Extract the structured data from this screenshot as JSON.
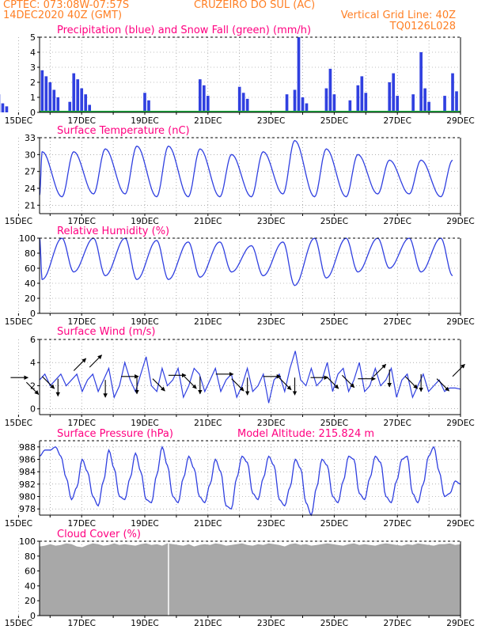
{
  "header": {
    "source": "CPTEC:  073:08W-07:57S",
    "station": "CRUZEIRO DO SUL (AC)",
    "date": "14DEC2020 40Z (GMT)",
    "grid_note": "Vertical Grid Line: 40Z",
    "code": "TQ0126L028"
  },
  "colors": {
    "header_text": "#ff7f24",
    "panel_title": "#ff0080",
    "line": "#3040e0",
    "snow": "#20b040",
    "cloud": "#a8a8a8",
    "wind_arrow": "#000000",
    "axes": "#000000",
    "grid": "#808080"
  },
  "x_axis": {
    "start": "14DEC2020 40Z",
    "end": "29DEC2020",
    "tick_labels": [
      "15DEC",
      "17DEC",
      "19DEC",
      "21DEC",
      "23DEC",
      "25DEC",
      "27DEC",
      "29DEC"
    ],
    "grid": "dotted vertical line every day"
  },
  "chart_data": [
    {
      "type": "bar",
      "title": "Precipitation (blue) and Snow Fall (green) (mm/h)",
      "ylim": [
        0,
        5
      ],
      "yticks": [
        0,
        1,
        2,
        3,
        4,
        5
      ],
      "series": [
        {
          "name": "Precipitation (blue)",
          "points": [
            [
              "14DEC 06Z",
              1.6
            ],
            [
              "14DEC 09Z",
              1.2
            ],
            [
              "14DEC 12Z",
              0.6
            ],
            [
              "14DEC 15Z",
              0.4
            ],
            [
              "15DEC 18Z",
              2.8
            ],
            [
              "15DEC 21Z",
              2.4
            ],
            [
              "16DEC 00Z",
              2.0
            ],
            [
              "16DEC 03Z",
              1.5
            ],
            [
              "16DEC 06Z",
              1.0
            ],
            [
              "16DEC 15Z",
              0.7
            ],
            [
              "16DEC 18Z",
              2.6
            ],
            [
              "16DEC 21Z",
              2.2
            ],
            [
              "17DEC 00Z",
              1.6
            ],
            [
              "17DEC 03Z",
              1.2
            ],
            [
              "17DEC 06Z",
              0.5
            ],
            [
              "19DEC 00Z",
              1.3
            ],
            [
              "19DEC 03Z",
              0.8
            ],
            [
              "20DEC 18Z",
              2.2
            ],
            [
              "20DEC 21Z",
              1.8
            ],
            [
              "21DEC 00Z",
              1.1
            ],
            [
              "22DEC 00Z",
              1.7
            ],
            [
              "22DEC 03Z",
              1.3
            ],
            [
              "22DEC 06Z",
              0.9
            ],
            [
              "23DEC 12Z",
              1.2
            ],
            [
              "23DEC 18Z",
              1.5
            ],
            [
              "23DEC 21Z",
              5.0
            ],
            [
              "24DEC 00Z",
              1.0
            ],
            [
              "24DEC 03Z",
              0.6
            ],
            [
              "24DEC 18Z",
              1.6
            ],
            [
              "24DEC 21Z",
              2.9
            ],
            [
              "25DEC 00Z",
              1.2
            ],
            [
              "25DEC 12Z",
              0.8
            ],
            [
              "25DEC 18Z",
              1.8
            ],
            [
              "25DEC 21Z",
              2.4
            ],
            [
              "26DEC 00Z",
              1.3
            ],
            [
              "26DEC 18Z",
              2.0
            ],
            [
              "26DEC 21Z",
              2.6
            ],
            [
              "27DEC 00Z",
              1.1
            ],
            [
              "27DEC 12Z",
              1.2
            ],
            [
              "27DEC 18Z",
              4.0
            ],
            [
              "27DEC 21Z",
              1.6
            ],
            [
              "28DEC 00Z",
              0.7
            ],
            [
              "28DEC 12Z",
              1.1
            ],
            [
              "28DEC 18Z",
              2.6
            ],
            [
              "28DEC 21Z",
              1.4
            ]
          ]
        },
        {
          "name": "Snow Fall (green)",
          "constant": 0
        }
      ]
    },
    {
      "type": "line",
      "title": "Surface Temperature (nC)",
      "ylim": [
        19.5,
        33
      ],
      "yticks": [
        21,
        24,
        27,
        30,
        33
      ],
      "daily_cycle": {
        "max_time": "18Z",
        "min_time": "09Z",
        "values": [
          {
            "day": "14DEC",
            "max": 23.0,
            "min": 20.5
          },
          {
            "day": "15DEC",
            "max": 30.5,
            "min": 22.0
          },
          {
            "day": "16DEC",
            "max": 30.5,
            "min": 22.5
          },
          {
            "day": "17DEC",
            "max": 31.0,
            "min": 23.0
          },
          {
            "day": "18DEC",
            "max": 31.5,
            "min": 23.0
          },
          {
            "day": "19DEC",
            "max": 31.5,
            "min": 22.5
          },
          {
            "day": "20DEC",
            "max": 31.0,
            "min": 22.5
          },
          {
            "day": "21DEC",
            "max": 30.0,
            "min": 22.5
          },
          {
            "day": "22DEC",
            "max": 30.5,
            "min": 22.5
          },
          {
            "day": "23DEC",
            "max": 32.5,
            "min": 23.0
          },
          {
            "day": "24DEC",
            "max": 31.0,
            "min": 22.5
          },
          {
            "day": "25DEC",
            "max": 30.0,
            "min": 22.5
          },
          {
            "day": "26DEC",
            "max": 29.0,
            "min": 23.0
          },
          {
            "day": "27DEC",
            "max": 29.0,
            "min": 23.0
          },
          {
            "day": "28DEC",
            "max": 29.0,
            "min": 22.5
          },
          {
            "day": "29DEC",
            "max": 28.5,
            "min": 23.0
          }
        ]
      }
    },
    {
      "type": "line",
      "title": "Relative Humidity (%)",
      "ylim": [
        0,
        100
      ],
      "yticks": [
        0,
        20,
        40,
        60,
        80,
        100
      ],
      "daily_cycle": {
        "max_time": "09Z",
        "min_time": "18Z",
        "values": [
          {
            "day": "14DEC",
            "max": 100,
            "min": 100
          },
          {
            "day": "15DEC",
            "max": 100,
            "min": 45
          },
          {
            "day": "16DEC",
            "max": 100,
            "min": 55
          },
          {
            "day": "17DEC",
            "max": 100,
            "min": 50
          },
          {
            "day": "18DEC",
            "max": 100,
            "min": 45
          },
          {
            "day": "19DEC",
            "max": 97,
            "min": 45
          },
          {
            "day": "20DEC",
            "max": 95,
            "min": 48
          },
          {
            "day": "21DEC",
            "max": 95,
            "min": 55
          },
          {
            "day": "22DEC",
            "max": 90,
            "min": 50
          },
          {
            "day": "23DEC",
            "max": 95,
            "min": 37
          },
          {
            "day": "24DEC",
            "max": 100,
            "min": 47
          },
          {
            "day": "25DEC",
            "max": 100,
            "min": 55
          },
          {
            "day": "26DEC",
            "max": 100,
            "min": 60
          },
          {
            "day": "27DEC",
            "max": 100,
            "min": 55
          },
          {
            "day": "28DEC",
            "max": 100,
            "min": 50
          },
          {
            "day": "29DEC",
            "max": 100,
            "min": 68
          }
        ]
      }
    },
    {
      "type": "line",
      "title": "Surface Wind (m/s)",
      "ylim": [
        -0.5,
        6
      ],
      "yticks": [
        0,
        2,
        4,
        6
      ],
      "speed": [
        2.5,
        3.0,
        2.0,
        2.5,
        3.0,
        2.0,
        2.5,
        3.0,
        1.5,
        2.5,
        3.0,
        1.5,
        2.5,
        3.5,
        1.0,
        2.0,
        4.0,
        2.5,
        1.5,
        3.0,
        4.5,
        2.0,
        1.5,
        3.5,
        2.0,
        2.5,
        3.5,
        1.0,
        2.0,
        3.5,
        3.0,
        1.5,
        2.5,
        3.5,
        1.5,
        2.5,
        3.0,
        1.0,
        2.0,
        3.5,
        1.5,
        2.0,
        3.0,
        0.5,
        2.5,
        3.0,
        1.5,
        3.5,
        5.0,
        2.5,
        2.0,
        3.5,
        2.0,
        2.5,
        4.0,
        1.5,
        3.0,
        3.5,
        1.5,
        2.5,
        4.0,
        1.5,
        2.0,
        3.5,
        2.0,
        2.5,
        3.5,
        1.0,
        2.5,
        3.0,
        1.0,
        2.0,
        3.0,
        1.5,
        2.0,
        2.5,
        1.5,
        1.8,
        1.8,
        1.7
      ],
      "arrows": [
        {
          "time": "14DEC 18Z",
          "speed": 2.7,
          "direction": "E"
        },
        {
          "time": "15DEC 06Z",
          "speed": 2.3,
          "direction": "SE"
        },
        {
          "time": "15DEC 18Z",
          "speed": 2.8,
          "direction": "SE"
        },
        {
          "time": "16DEC 06Z",
          "speed": 2.6,
          "direction": "S"
        },
        {
          "time": "16DEC 18Z",
          "speed": 3.3,
          "direction": "NE"
        },
        {
          "time": "17DEC 06Z",
          "speed": 3.6,
          "direction": "NE"
        },
        {
          "time": "17DEC 18Z",
          "speed": 2.5,
          "direction": "S"
        },
        {
          "time": "18DEC 06Z",
          "speed": 2.8,
          "direction": "E"
        },
        {
          "time": "18DEC 18Z",
          "speed": 2.8,
          "direction": "S"
        },
        {
          "time": "19DEC 06Z",
          "speed": 2.6,
          "direction": "SE"
        },
        {
          "time": "19DEC 18Z",
          "speed": 2.9,
          "direction": "E"
        },
        {
          "time": "20DEC 06Z",
          "speed": 2.8,
          "direction": "SE"
        },
        {
          "time": "20DEC 18Z",
          "speed": 2.8,
          "direction": "S"
        },
        {
          "time": "21DEC 06Z",
          "speed": 3.0,
          "direction": "E"
        },
        {
          "time": "21DEC 18Z",
          "speed": 2.6,
          "direction": "SE"
        },
        {
          "time": "22DEC 06Z",
          "speed": 2.7,
          "direction": "S"
        },
        {
          "time": "22DEC 18Z",
          "speed": 2.8,
          "direction": "E"
        },
        {
          "time": "23DEC 06Z",
          "speed": 2.7,
          "direction": "SE"
        },
        {
          "time": "23DEC 18Z",
          "speed": 2.7,
          "direction": "S"
        },
        {
          "time": "24DEC 06Z",
          "speed": 2.7,
          "direction": "E"
        },
        {
          "time": "24DEC 18Z",
          "speed": 2.8,
          "direction": "SE"
        },
        {
          "time": "25DEC 06Z",
          "speed": 2.9,
          "direction": "SE"
        },
        {
          "time": "25DEC 18Z",
          "speed": 2.6,
          "direction": "E"
        },
        {
          "time": "26DEC 06Z",
          "speed": 2.8,
          "direction": "NE"
        },
        {
          "time": "26DEC 18Z",
          "speed": 3.4,
          "direction": "S"
        },
        {
          "time": "27DEC 06Z",
          "speed": 2.8,
          "direction": "SE"
        },
        {
          "time": "27DEC 18Z",
          "speed": 3.0,
          "direction": "S"
        },
        {
          "time": "28DEC 06Z",
          "speed": 2.6,
          "direction": "SE"
        },
        {
          "time": "28DEC 18Z",
          "speed": 2.8,
          "direction": "NE"
        }
      ]
    },
    {
      "type": "line",
      "title": "Surface Pressure (hPa)",
      "subtitle": "Model Altitude: 215.824 m",
      "ylim": [
        977,
        989
      ],
      "yticks": [
        978,
        980,
        982,
        984,
        986,
        988
      ],
      "values": [
        986.5,
        987.5,
        987.5,
        988.0,
        986.5,
        983.0,
        979.5,
        981.5,
        986.0,
        984.0,
        980.0,
        978.5,
        982.5,
        987.5,
        984.5,
        980.0,
        979.5,
        983.0,
        987.0,
        984.0,
        979.5,
        979.0,
        983.5,
        988.0,
        985.0,
        980.0,
        979.0,
        983.0,
        986.5,
        984.5,
        980.0,
        979.0,
        982.0,
        986.0,
        984.0,
        978.5,
        978.0,
        983.0,
        986.5,
        985.5,
        980.5,
        979.5,
        983.0,
        986.5,
        985.0,
        979.5,
        978.5,
        981.5,
        986.0,
        984.5,
        979.0,
        977.0,
        981.5,
        986.0,
        985.0,
        980.0,
        979.0,
        982.5,
        986.5,
        986.0,
        980.5,
        979.5,
        983.0,
        986.5,
        985.5,
        980.0,
        979.0,
        982.5,
        986.0,
        986.5,
        980.5,
        979.0,
        982.0,
        986.5,
        988.0,
        984.0,
        980.0,
        980.5,
        982.5,
        982.0
      ]
    },
    {
      "type": "area",
      "title": "Cloud Cover (%)",
      "ylim": [
        0,
        100
      ],
      "yticks": [
        0,
        20,
        40,
        60,
        80,
        100
      ],
      "values": [
        93,
        94,
        96,
        94,
        95,
        97,
        96,
        93,
        92,
        95,
        97,
        96,
        94,
        95,
        97,
        95,
        96,
        95,
        94,
        96,
        97,
        95,
        96,
        94,
        97,
        96,
        95,
        94,
        96,
        93,
        95,
        96,
        95,
        97,
        96,
        94,
        95,
        96,
        97,
        95,
        94,
        96,
        95,
        97,
        96,
        95,
        93,
        96,
        97,
        95,
        96,
        94,
        95,
        96,
        97,
        96,
        95,
        94,
        96,
        97,
        95,
        96,
        95,
        94,
        96,
        97,
        96,
        95,
        94,
        96,
        95,
        97,
        96,
        95,
        94,
        96,
        96,
        97,
        95,
        96
      ],
      "gaps": [
        {
          "time": "19DEC 18Z",
          "value": 0
        }
      ]
    }
  ]
}
